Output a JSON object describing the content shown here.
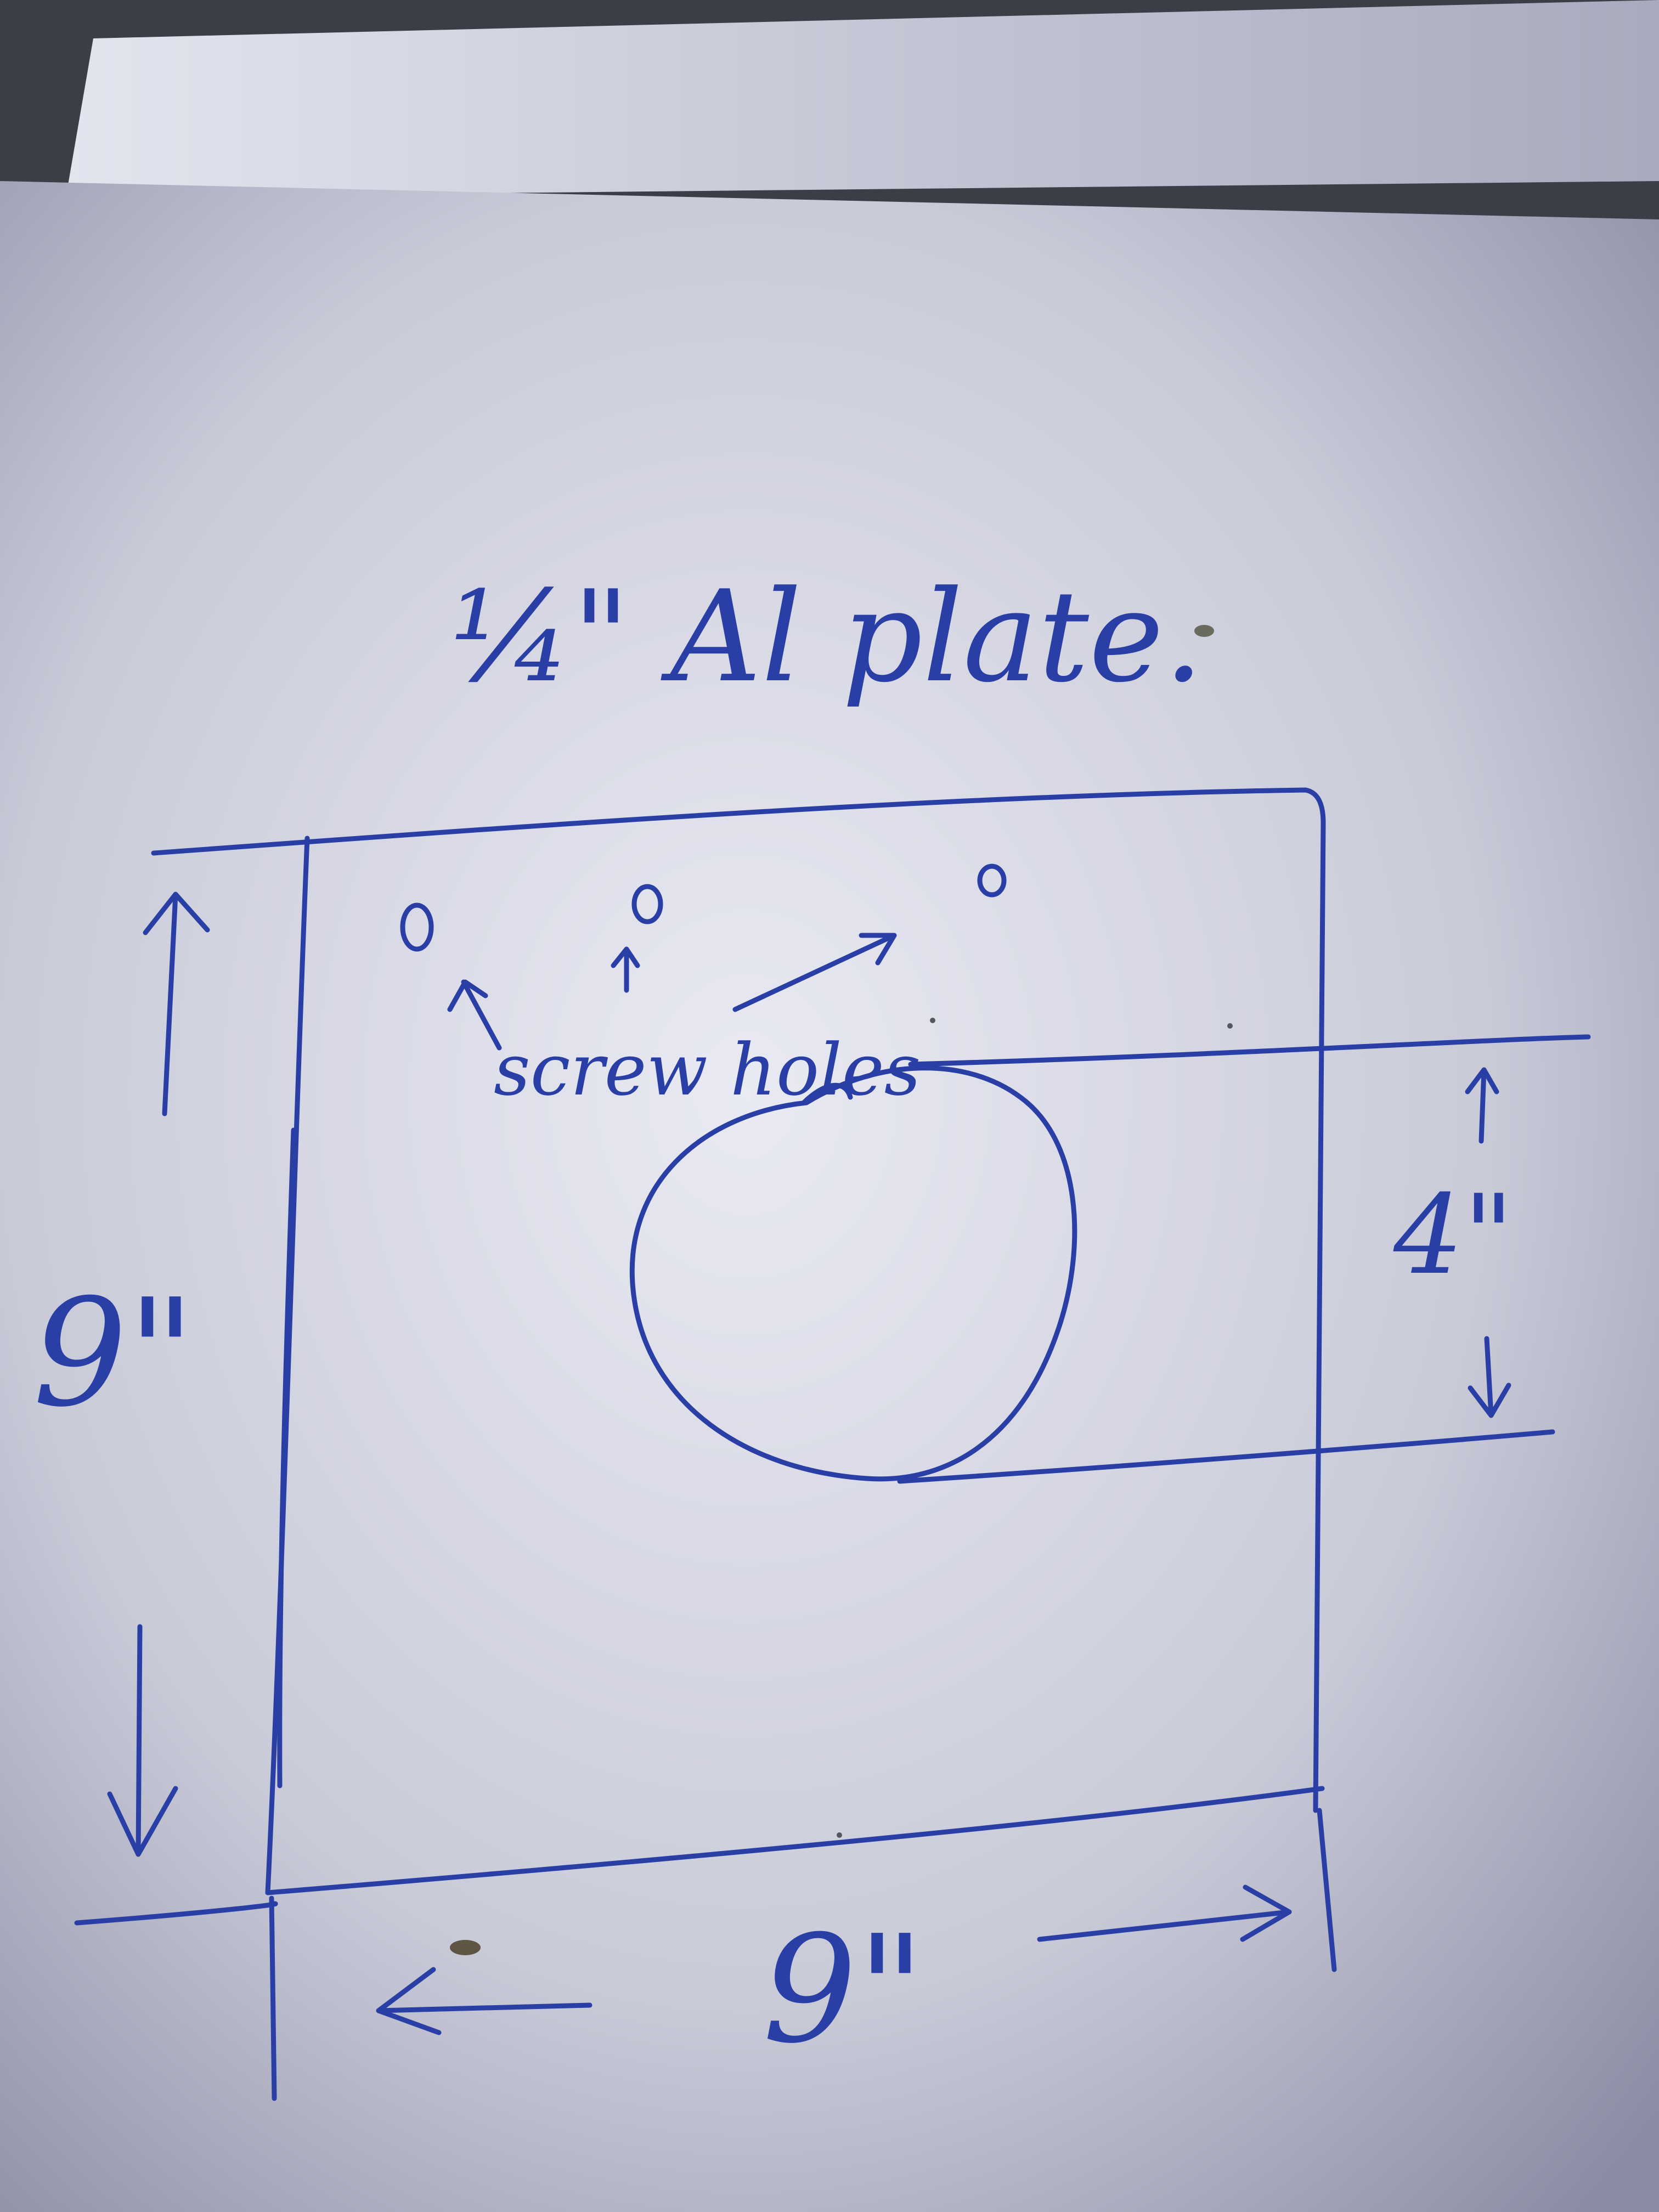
{
  "diagram": {
    "title": "¼\" Al plate.",
    "screw_label": "screw holes",
    "height_label": "9\"",
    "width_label": "9\"",
    "hole_diameter_label": "4\"",
    "colors": {
      "ink": "#2a3fa6",
      "paper_light": "#e6e8f2",
      "paper_dark": "#8f90a6"
    }
  }
}
